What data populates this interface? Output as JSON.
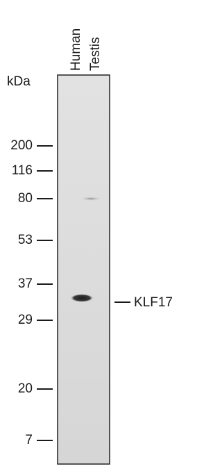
{
  "unit": "kDa",
  "lane_label": [
    "Human",
    "Testis"
  ],
  "markers": [
    "200",
    "116",
    "80",
    "53",
    "37",
    "29",
    "20",
    "7"
  ],
  "band_label": "KLF17"
}
